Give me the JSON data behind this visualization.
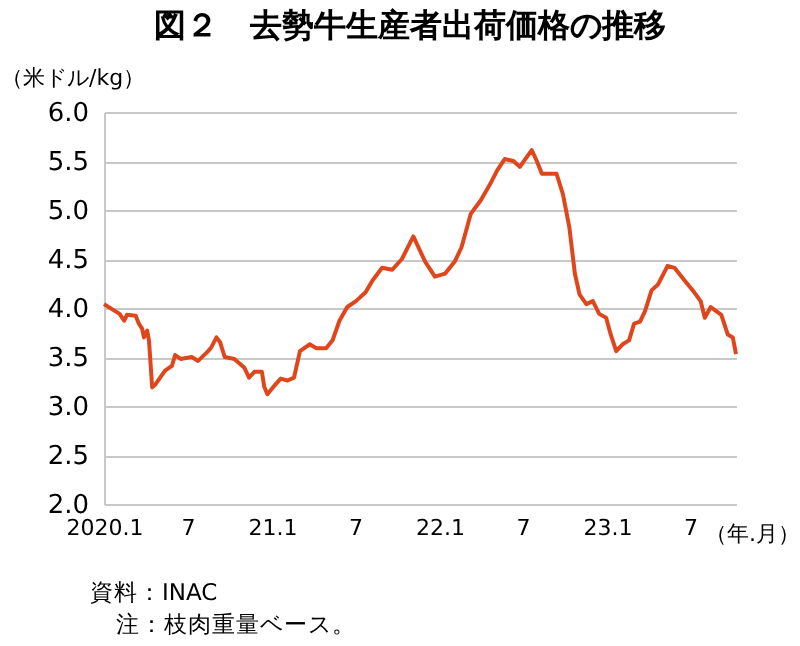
{
  "chart_data": {
    "type": "line",
    "title": "図２　去勢牛生産者出荷価格の推移",
    "ylabel": "（米ドル/kg）",
    "xlabel": "（年.月）",
    "annotations": [
      "資料：INAC",
      "注：枝肉重量ベース。"
    ],
    "x": [
      "2020-01-01",
      "2020-02-04",
      "2020-02-14",
      "2020-02-20",
      "2020-03-10",
      "2020-03-17",
      "2020-03-24",
      "2020-03-28",
      "2020-04-04",
      "2020-04-08",
      "2020-04-15",
      "2020-04-22",
      "2020-05-13",
      "2020-05-28",
      "2020-06-04",
      "2020-06-16",
      "2020-07-10",
      "2020-07-24",
      "2020-08-15",
      "2020-08-22",
      "2020-09-02",
      "2020-09-10",
      "2020-09-20",
      "2020-10-11",
      "2020-11-02",
      "2020-11-12",
      "2020-11-24",
      "2020-12-10",
      "2020-12-15",
      "2020-12-22",
      "2021-01-03",
      "2021-01-20",
      "2021-02-04",
      "2021-02-18",
      "2021-03-03",
      "2021-03-24",
      "2021-04-08",
      "2021-04-29",
      "2021-05-13",
      "2021-05-28",
      "2021-06-14",
      "2021-07-03",
      "2021-07-24",
      "2021-08-08",
      "2021-08-29",
      "2021-09-20",
      "2021-10-11",
      "2021-11-05",
      "2021-12-01",
      "2021-12-22",
      "2022-01-13",
      "2022-02-04",
      "2022-02-18",
      "2022-03-10",
      "2022-04-01",
      "2022-04-22",
      "2022-05-06",
      "2022-05-23",
      "2022-06-11",
      "2022-06-25",
      "2022-07-10",
      "2022-07-21",
      "2022-08-01",
      "2022-08-12",
      "2022-09-13",
      "2022-09-27",
      "2022-10-11",
      "2022-10-23",
      "2022-11-02",
      "2022-11-17",
      "2022-12-01",
      "2022-12-15",
      "2022-12-30",
      "2023-01-09",
      "2023-01-21",
      "2023-02-04",
      "2023-02-18",
      "2023-03-01",
      "2023-03-14",
      "2023-03-25",
      "2023-04-08",
      "2023-04-22",
      "2023-05-13",
      "2023-05-28",
      "2023-06-19",
      "2023-07-10",
      "2023-07-24",
      "2023-08-02",
      "2023-08-15",
      "2023-09-07",
      "2023-09-21",
      "2023-10-02",
      "2023-10-09"
    ],
    "series": [
      {
        "color": "#e0461c",
        "values": [
          4.04,
          3.94,
          3.87,
          3.93,
          3.92,
          3.84,
          3.79,
          3.7,
          3.77,
          3.67,
          3.19,
          3.22,
          3.36,
          3.41,
          3.52,
          3.48,
          3.5,
          3.46,
          3.56,
          3.6,
          3.7,
          3.65,
          3.5,
          3.48,
          3.39,
          3.29,
          3.35,
          3.35,
          3.2,
          3.12,
          3.19,
          3.28,
          3.26,
          3.29,
          3.56,
          3.63,
          3.59,
          3.59,
          3.67,
          3.87,
          4.01,
          4.07,
          4.16,
          4.28,
          4.41,
          4.39,
          4.5,
          4.73,
          4.47,
          4.32,
          4.35,
          4.48,
          4.62,
          4.96,
          5.1,
          5.27,
          5.4,
          5.52,
          5.5,
          5.44,
          5.54,
          5.61,
          5.5,
          5.37,
          5.37,
          5.16,
          4.82,
          4.35,
          4.14,
          4.04,
          4.07,
          3.94,
          3.9,
          3.73,
          3.56,
          3.63,
          3.67,
          3.84,
          3.86,
          3.97,
          4.18,
          4.24,
          4.43,
          4.41,
          4.28,
          4.16,
          4.07,
          3.9,
          4.01,
          3.93,
          3.73,
          3.7,
          3.53
        ]
      }
    ],
    "xlim": [
      "2020-01-01",
      "2023-10-09"
    ],
    "xticks": [
      {
        "value": "2020-01",
        "label": "2020.1"
      },
      {
        "value": "2020-07",
        "label": "7"
      },
      {
        "value": "2021-01",
        "label": "21.1"
      },
      {
        "value": "2021-07",
        "label": "7"
      },
      {
        "value": "2022-01",
        "label": "22.1"
      },
      {
        "value": "2022-07",
        "label": "7"
      },
      {
        "value": "2023-01",
        "label": "23.1"
      },
      {
        "value": "2023-07",
        "label": "7"
      }
    ],
    "ylim": [
      2,
      6
    ],
    "yticks": [
      {
        "value": 2,
        "label": "2.0"
      },
      {
        "value": 2.5,
        "label": "2.5"
      },
      {
        "value": 3,
        "label": "3.0"
      },
      {
        "value": 3.5,
        "label": "3.5"
      },
      {
        "value": 4,
        "label": "4.0"
      },
      {
        "value": 4.5,
        "label": "4.5"
      },
      {
        "value": 5,
        "label": "5.0"
      },
      {
        "value": 5.5,
        "label": "5.5"
      },
      {
        "value": 6,
        "label": "6.0"
      }
    ],
    "grid": "y",
    "legend": false,
    "marker": "none",
    "line_style": "solid"
  }
}
